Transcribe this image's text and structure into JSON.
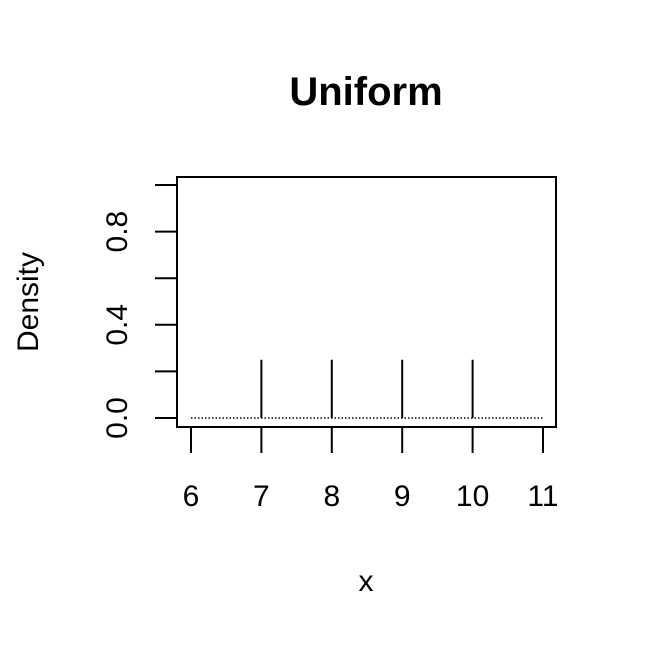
{
  "chart_data": {
    "type": "line",
    "title": "Uniform",
    "xlabel": "x",
    "ylabel": "Density",
    "x_ticks": [
      "6",
      "7",
      "8",
      "9",
      "10",
      "11"
    ],
    "y_ticks": [
      "0.0",
      "0.4",
      "0.8"
    ],
    "xlim": [
      6,
      11
    ],
    "ylim": [
      0,
      1
    ],
    "y_minor_ticks": [
      0,
      0.2,
      0.4,
      0.6,
      0.8,
      1.0
    ],
    "grid": false,
    "legend": "none",
    "series": [
      {
        "style": "spikes",
        "x": [
          7,
          8,
          9,
          10
        ],
        "y": [
          0.25,
          0.25,
          0.25,
          0.25
        ]
      },
      {
        "style": "dotted-baseline",
        "x": [
          6,
          11
        ],
        "y": [
          0,
          0
        ]
      }
    ]
  }
}
